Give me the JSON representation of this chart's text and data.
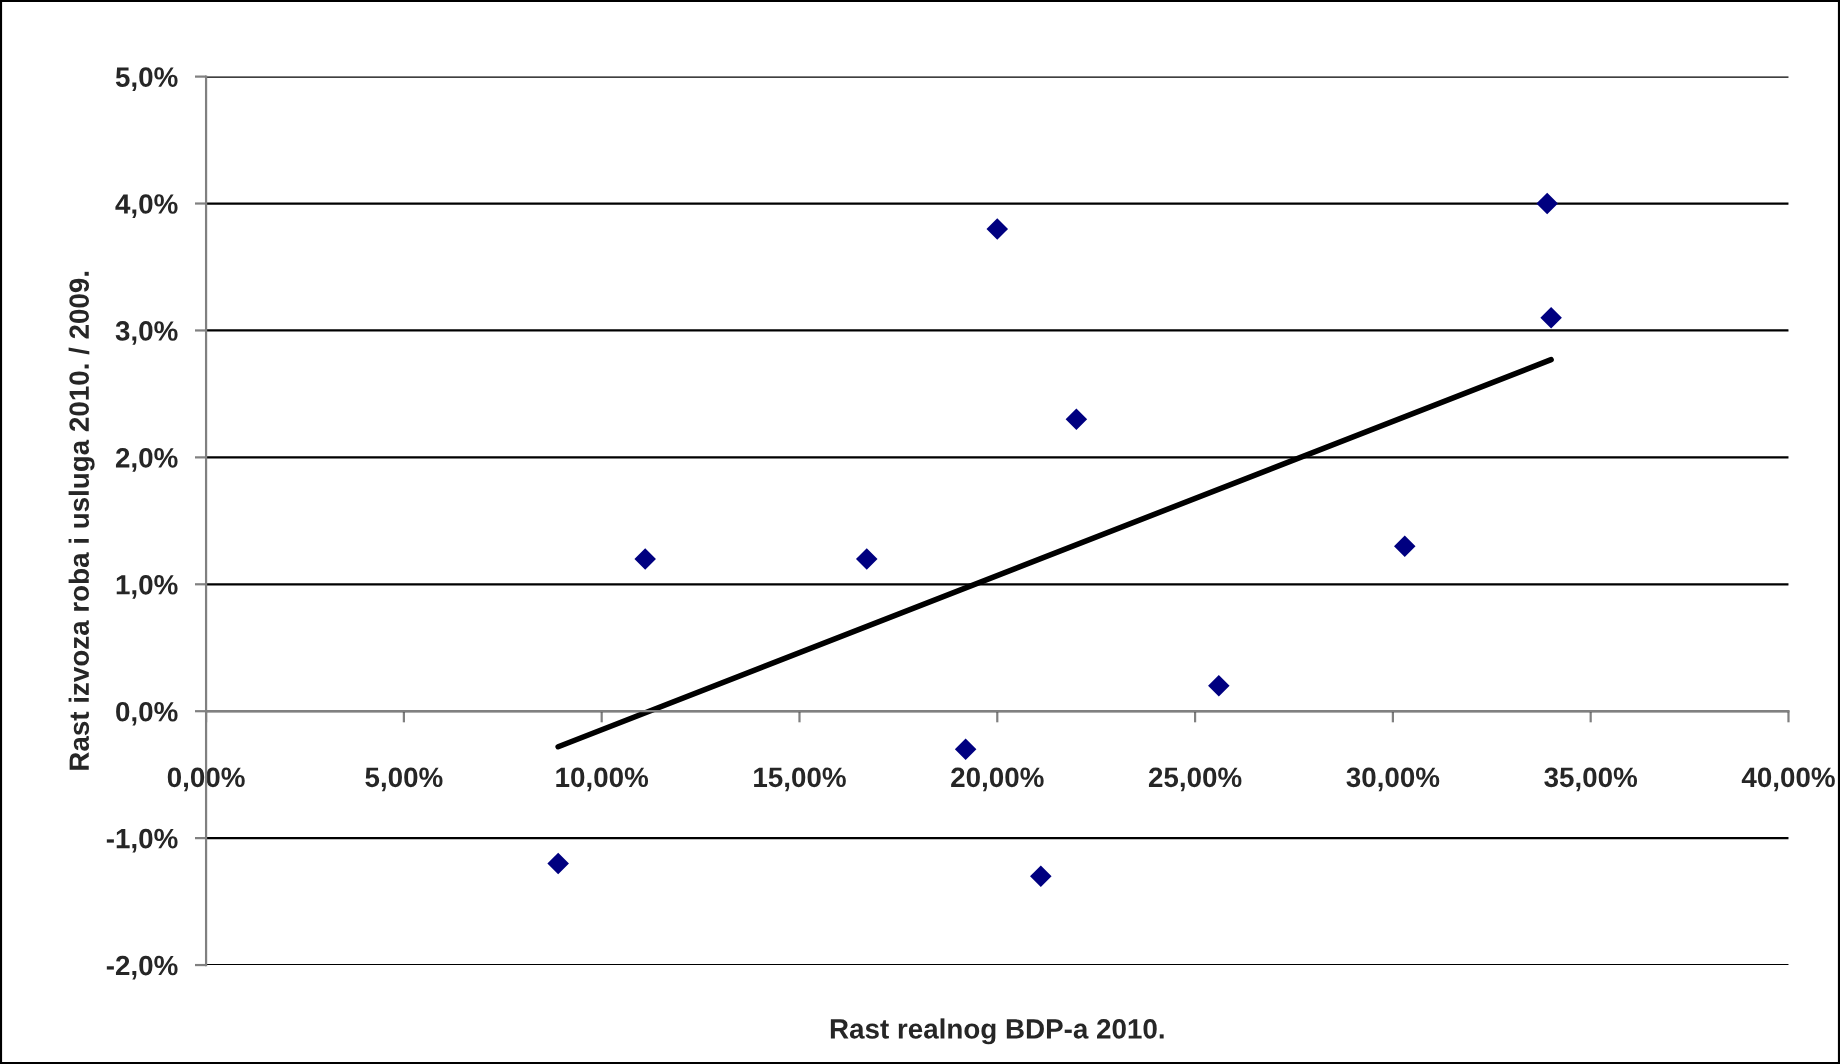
{
  "chart_data": {
    "type": "scatter",
    "xlabel": "Rast realnog BDP-a 2010.",
    "ylabel": "Rast izvoza roba i usluga 2010. / 2009.",
    "xlim": [
      0,
      40
    ],
    "ylim": [
      -2,
      5
    ],
    "xticks": [
      {
        "value": 0,
        "label": "0,00%"
      },
      {
        "value": 5,
        "label": "5,00%"
      },
      {
        "value": 10,
        "label": "10,00%"
      },
      {
        "value": 15,
        "label": "15,00%"
      },
      {
        "value": 20,
        "label": "20,00%"
      },
      {
        "value": 25,
        "label": "25,00%"
      },
      {
        "value": 30,
        "label": "30,00%"
      },
      {
        "value": 35,
        "label": "35,00%"
      },
      {
        "value": 40,
        "label": "40,00%"
      }
    ],
    "yticks": [
      {
        "value": -2,
        "label": "-2,0%"
      },
      {
        "value": -1,
        "label": "-1,0%"
      },
      {
        "value": 0,
        "label": "0,0%"
      },
      {
        "value": 1,
        "label": "1,0%"
      },
      {
        "value": 2,
        "label": "2,0%"
      },
      {
        "value": 3,
        "label": "3,0%"
      },
      {
        "value": 4,
        "label": "4,0%"
      },
      {
        "value": 5,
        "label": "5,0%"
      }
    ],
    "grid": "y",
    "legend": false,
    "marker": "diamond",
    "series": [
      {
        "color": "#000080",
        "x": [
          8.9,
          11.1,
          16.7,
          19.2,
          20.0,
          21.1,
          22.0,
          25.6,
          30.3,
          33.9,
          34.0
        ],
        "values": [
          -1.2,
          1.2,
          1.2,
          -0.3,
          3.8,
          -1.3,
          2.3,
          0.2,
          1.3,
          4.0,
          3.1
        ]
      },
      {
        "type": "line",
        "marker": "none",
        "color": "#000000",
        "x": [
          8.9,
          34.0
        ],
        "values": [
          -0.28,
          2.77
        ]
      }
    ]
  }
}
